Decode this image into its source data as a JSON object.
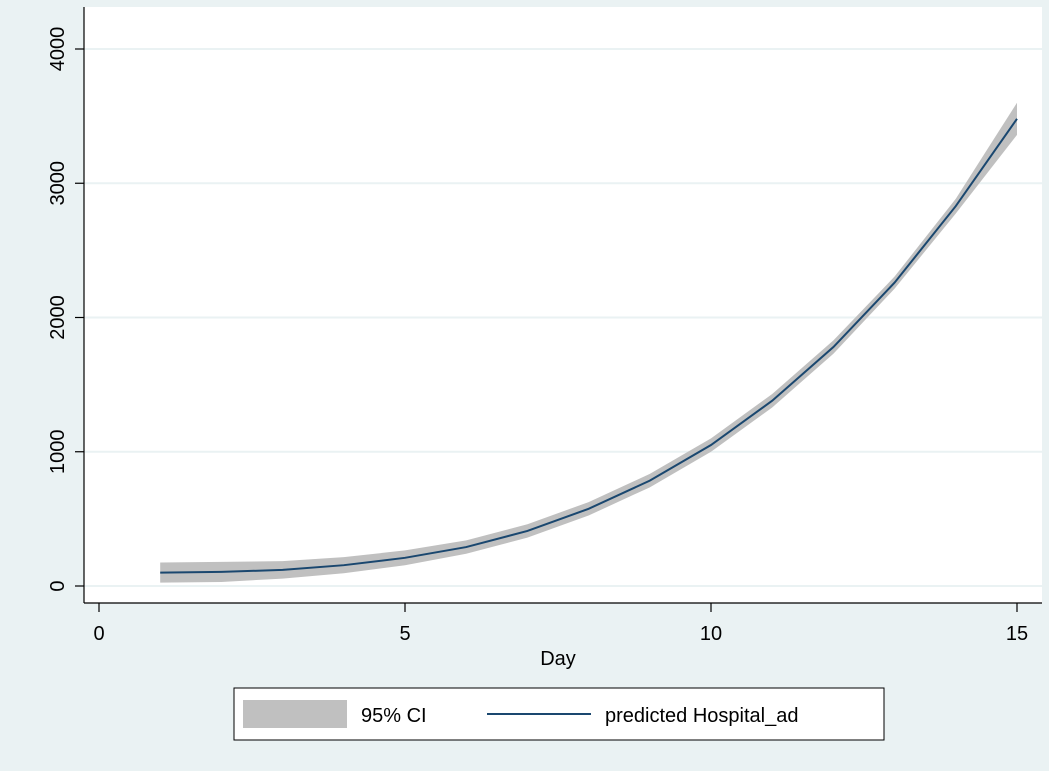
{
  "colors": {
    "background": "#eaf2f3",
    "plot_region": "#ffffff",
    "gridline": "#eaf2f3",
    "axis": "#000000",
    "ci_band": "#c0c0c0",
    "line": "#1a476f"
  },
  "chart_data": {
    "type": "line",
    "title": "",
    "xlabel": "Day",
    "ylabel": "",
    "xlim": [
      0,
      15
    ],
    "ylim": [
      0,
      4000
    ],
    "x_ticks": [
      0,
      5,
      10,
      15
    ],
    "y_ticks": [
      0,
      1000,
      2000,
      3000,
      4000
    ],
    "grid": "horizontal",
    "legend_position": "bottom",
    "x": [
      1,
      2,
      3,
      4,
      5,
      6,
      7,
      8,
      9,
      10,
      11,
      12,
      13,
      14,
      15
    ],
    "series": [
      {
        "name": "predicted Hospital_ad",
        "kind": "line",
        "values": [
          100,
          105,
          120,
          155,
          210,
          290,
          410,
          575,
          785,
          1050,
          1380,
          1780,
          2260,
          2830,
          3480
        ]
      },
      {
        "name": "95% CI",
        "kind": "band",
        "lower": [
          25,
          30,
          55,
          95,
          155,
          240,
          360,
          525,
          735,
          1000,
          1330,
          1730,
          2215,
          2775,
          3360
        ],
        "upper": [
          175,
          180,
          185,
          215,
          265,
          340,
          460,
          625,
          835,
          1100,
          1430,
          1830,
          2305,
          2885,
          3600
        ]
      }
    ]
  }
}
